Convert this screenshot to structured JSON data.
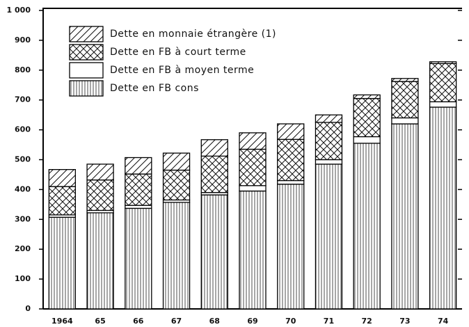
{
  "chart_data": {
    "type": "stacked-bar",
    "categories": [
      "1964",
      "65",
      "66",
      "67",
      "68",
      "69",
      "70",
      "71",
      "72",
      "73",
      "74"
    ],
    "series": [
      {
        "name": "Dette en FB cons",
        "color": "#000000",
        "pattern": "vertical",
        "values": [
          307,
          322,
          337,
          357,
          382,
          395,
          418,
          485,
          555,
          620,
          676
        ]
      },
      {
        "name": "Dette en FB à moyen terme",
        "color": "#000000",
        "pattern": "none",
        "values": [
          8,
          8,
          10,
          8,
          8,
          18,
          12,
          15,
          22,
          20,
          18
        ]
      },
      {
        "name": "Dette en FB à court terme",
        "color": "#000000",
        "pattern": "crosshatch",
        "values": [
          95,
          102,
          105,
          100,
          122,
          122,
          138,
          125,
          128,
          122,
          128
        ]
      },
      {
        "name": "Dette en monnaie étrangère (1)",
        "color": "#000000",
        "pattern": "diagonal",
        "values": [
          57,
          53,
          55,
          57,
          55,
          55,
          52,
          25,
          12,
          10,
          6
        ]
      }
    ],
    "ylim": [
      0,
      1000
    ],
    "yticks": [
      0,
      100,
      200,
      300,
      400,
      500,
      600,
      700,
      800,
      900,
      {
        "value": 1000,
        "label": "1 000"
      }
    ],
    "legend": "upper left"
  }
}
